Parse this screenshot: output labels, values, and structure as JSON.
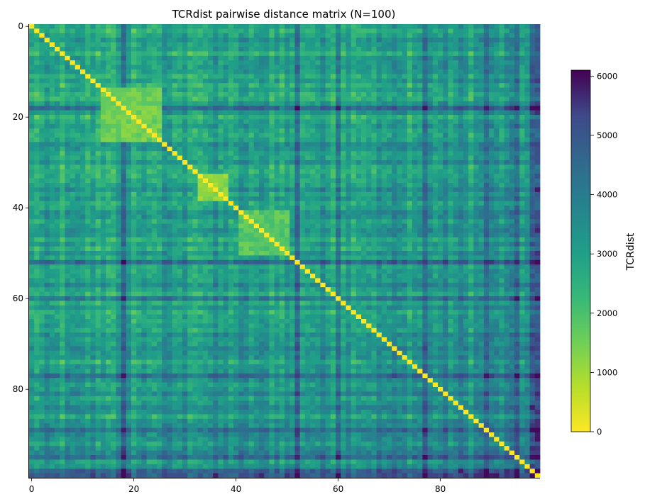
{
  "chart_data": {
    "type": "heatmap",
    "title": "TCRdist pairwise distance matrix  (N=100)",
    "n": 100,
    "xlabel": "",
    "ylabel": "",
    "x_ticks": [
      "0",
      "20",
      "40",
      "60",
      "80"
    ],
    "y_ticks": [
      "0",
      "20",
      "40",
      "60",
      "80"
    ],
    "colormap": "viridis_r",
    "colorbar": {
      "label": "TCRdist",
      "range": [
        0,
        6100
      ],
      "ticks": [
        "0",
        "1000",
        "2000",
        "3000",
        "4000",
        "5000",
        "6000"
      ]
    },
    "diagonal_value": 0,
    "distance_range_offdiagonal": [
      800,
      6000
    ],
    "close_clusters": [
      {
        "rows": [
          14,
          25
        ],
        "cols": [
          14,
          25
        ],
        "approx_distance": 1500
      },
      {
        "rows": [
          33,
          38
        ],
        "cols": [
          33,
          38
        ],
        "approx_distance": 1200
      },
      {
        "rows": [
          41,
          50
        ],
        "cols": [
          41,
          50
        ],
        "approx_distance": 1800
      }
    ],
    "distant_rows_cols": [
      18,
      52,
      60,
      77,
      89,
      95,
      98,
      99
    ]
  }
}
